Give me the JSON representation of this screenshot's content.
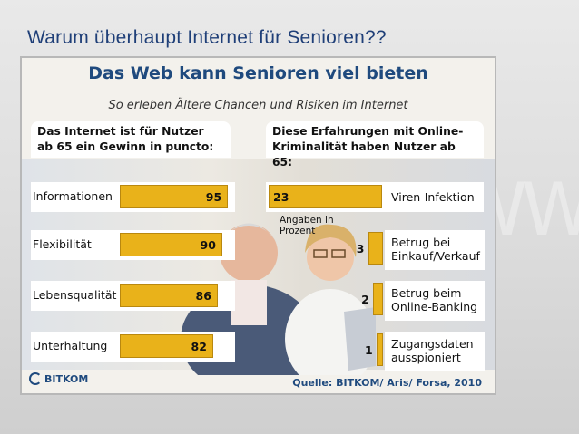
{
  "slide": {
    "title": "Warum überhaupt Internet für Senioren??"
  },
  "infographic": {
    "title": "Das Web kann Senioren viel bieten",
    "subtitle": "So erleben Ältere Chancen und Risiken im Internet",
    "source": "Quelle: BITKOM/ Aris/ Forsa, 2010",
    "logo_text": "BITKOM",
    "note_line1": "Angaben in",
    "note_line2": "Prozent",
    "accent_color": "#e9b21a",
    "title_color": "#1f4a7e"
  },
  "chart_data": [
    {
      "type": "bar",
      "orientation": "horizontal",
      "title_line1": "Das Internet ist für Nutzer",
      "title_line2": "ab 65 ein Gewinn in puncto:",
      "categories": [
        "Informationen",
        "Flexibilität",
        "Lebensqualität",
        "Unterhaltung"
      ],
      "values": [
        95,
        90,
        86,
        82
      ],
      "values_text": [
        "95",
        "90",
        "86",
        "82"
      ]
    },
    {
      "type": "bar",
      "orientation": "horizontal",
      "title_line1": "Diese Erfahrungen mit Online-",
      "title_line2": "Kriminalität haben Nutzer ab 65:",
      "categories": [
        {
          "line1": "Viren-Infektion",
          "line2": ""
        },
        {
          "line1": "Betrug bei",
          "line2": "Einkauf/Verkauf"
        },
        {
          "line1": "Betrug beim",
          "line2": "Online-Banking"
        },
        {
          "line1": "Zugangsdaten",
          "line2": "ausspioniert"
        }
      ],
      "values": [
        23,
        3,
        2,
        1
      ],
      "values_text": [
        "23",
        "3",
        "2",
        "1"
      ]
    }
  ]
}
